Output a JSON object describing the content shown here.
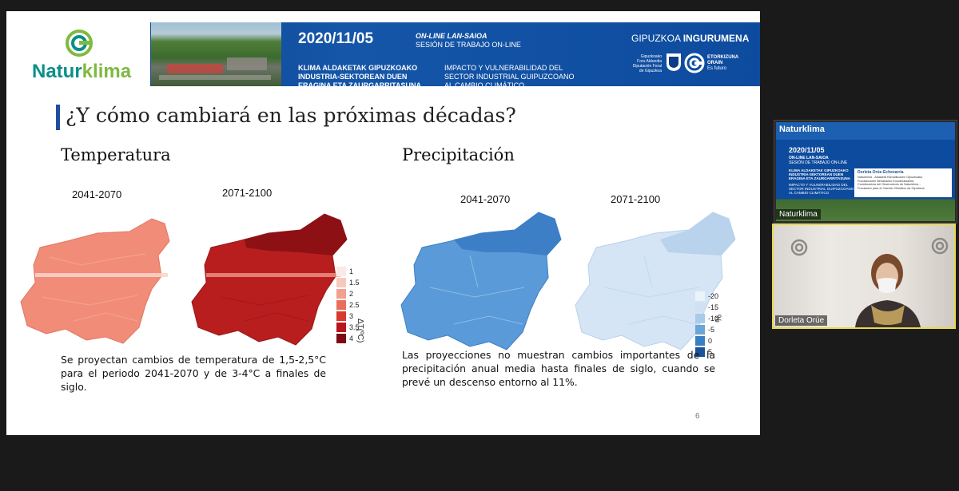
{
  "slide": {
    "banner": {
      "logo_prefix": "Natur",
      "logo_suffix": "klima",
      "date": "2020/11/05",
      "session_eu": "ON-LINE LAN-SAIOA",
      "session_es": "SESIÓN DE TRABAJO ON-LINE",
      "title_eu": [
        "KLIMA ALDAKETAK GIPUZKOAKO",
        "INDUSTRIA-SEKTOREAN DUEN",
        "ERAGINA ETA ZAURGARRITASUNA"
      ],
      "title_es": [
        "IMPACTO Y VULNERABILIDAD DEL",
        "SECTOR INDUSTRIAL GUIPUZCOANO",
        "AL CAMBIO CLIMÁTICO"
      ],
      "org_prefix": "GIPUZKOA",
      "org_suffix": "INGURUMENA",
      "diputacion": [
        "Gipuzkoako",
        "Foru Aldundia",
        "Diputación Foral",
        "de Gipuzkoa"
      ],
      "etorkizuna": [
        "ETORKIZUNA",
        "ORAIN",
        "Es futuro"
      ]
    },
    "title": "¿Y cómo cambiará en las próximas décadas?",
    "temperature": {
      "heading": "Temperatura",
      "period_1": "2041-2070",
      "period_2": "2071-2100",
      "legend_values": [
        "1",
        "1.5",
        "2",
        "2.5",
        "3",
        "3.5",
        "4"
      ],
      "legend_colors": [
        "#fbe9e6",
        "#f7c9bd",
        "#f2a08f",
        "#e96f5c",
        "#d83a2e",
        "#b8161b",
        "#7d0a10"
      ],
      "axis_label": "ΔT(ºC)",
      "map1_color": "#f08c78",
      "map2_color": "#b81e1e",
      "description": "Se proyectan cambios de temperatura de 1,5-2,5°C para el periodo 2041-2070 y de 3-4°C a finales de siglo."
    },
    "precipitation": {
      "heading": "Precipitación",
      "period_1": "2041-2070",
      "period_2": "2071-2100",
      "legend_values": [
        "-20",
        "-15",
        "-10",
        "-5",
        "0",
        "5"
      ],
      "legend_colors": [
        "#eaf2fa",
        "#cfe1f2",
        "#a9cbe8",
        "#6aa6d6",
        "#3b7fc3",
        "#1a539c"
      ],
      "axis_label": "%",
      "map1_color": "#5b9ad8",
      "map2_color": "#d5e5f5",
      "description": "Las proyecciones no muestran cambios importantes de la precipitación anual media hasta finales de siglo, cuando se prevé un descenso entorno al 11%."
    },
    "page_number": "6"
  },
  "participants": [
    {
      "name": "Naturklima",
      "thumb": {
        "logo_prefix": "Natur",
        "logo_suffix": "klima",
        "date": "2020/11/05",
        "session": "ON-LINE LAN-SAIOA",
        "session_es": "SESIÓN DE TRABAJO ON-LINE",
        "title_eu": [
          "KLIMA ALDAKETAK GIPUZKOAKO",
          "INDUSTRIA-SEKTOREAN DUEN",
          "ERAGINA ETA ZAURGARRITASUNA"
        ],
        "title_es": [
          "IMPACTO Y VULNERABILIDAD DEL",
          "SECTOR INDUSTRIAL GUIPUZCOANO",
          "AL CAMBIO CLIMÁTICO"
        ],
        "speaker": "Dorleta Orúe-Echevarria",
        "speaker_lines": [
          "Naturklima - Aldaketa Klimatikoaren Gipuzkoako",
          "Fundazioaren Behatokiko Koordinatzailea",
          "Coordinadora del Observatorio de Naturklima -",
          "Fundación para el Cambio Climático de Gipuzkoa"
        ]
      }
    },
    {
      "name": "Dorleta Orúe"
    }
  ]
}
